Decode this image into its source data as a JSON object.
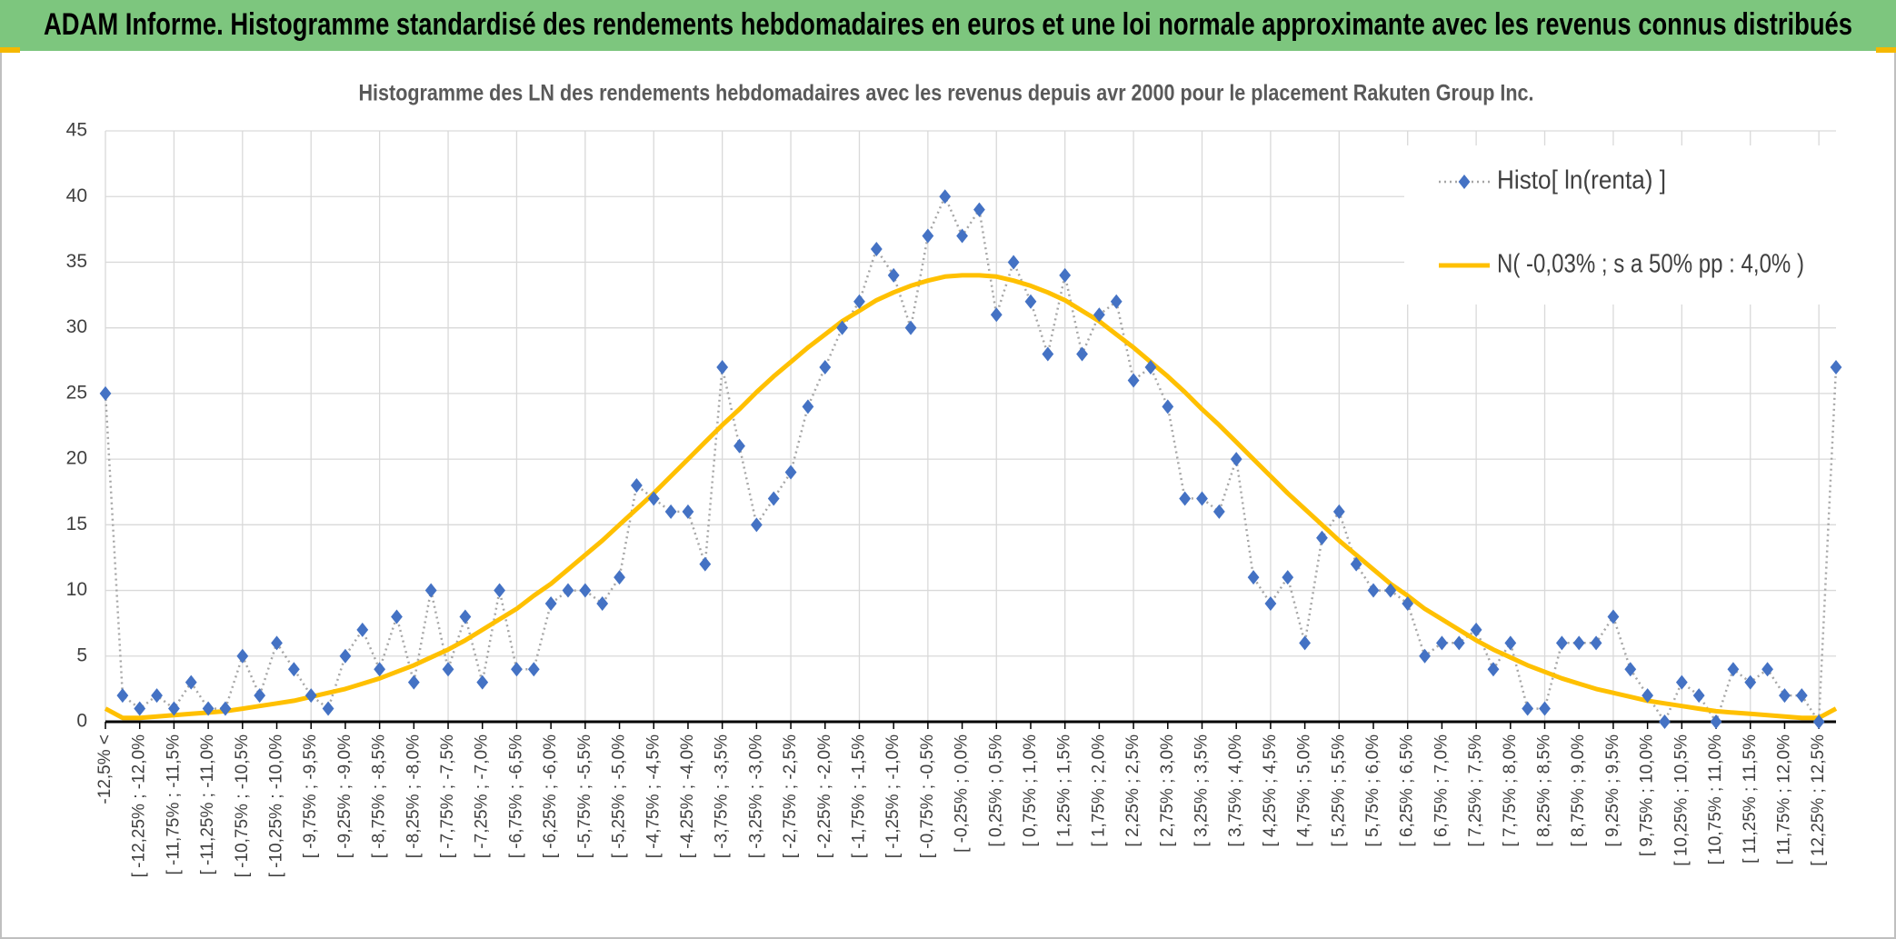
{
  "header": {
    "title": "ADAM Informe. Histogramme standardisé des rendements hebdomadaires en euros et une loi normale approximante avec les revenus connus distribués"
  },
  "chart_data": {
    "type": "line",
    "title": "Histogramme des LN des rendements hebdomadaires avec les revenus depuis avr 2000 pour le placement Rakuten Group Inc.",
    "categories": [
      "-12,5% <",
      null,
      "[ -12,25% ; -12,0%",
      null,
      "[ -11,75% ; -11,5%",
      null,
      "[ -11,25% ; -11,0%",
      null,
      "[ -10,75% ; -10,5%",
      null,
      "[ -10,25% ; -10,0%",
      null,
      "[ -9,75% ; -9,5%",
      null,
      "[ -9,25% ; -9,0%",
      null,
      "[ -8,75% ; -8,5%",
      null,
      "[ -8,25% ; -8,0%",
      null,
      "[ -7,75% ; -7,5%",
      null,
      "[ -7,25% ; -7,0%",
      null,
      "[ -6,75% ; -6,5%",
      null,
      "[ -6,25% ; -6,0%",
      null,
      "[ -5,75% ; -5,5%",
      null,
      "[ -5,25% ; -5,0%",
      null,
      "[ -4,75% ; -4,5%",
      null,
      "[ -4,25% ; -4,0%",
      null,
      "[ -3,75% ; -3,5%",
      null,
      "[ -3,25% ; -3,0%",
      null,
      "[ -2,75% ; -2,5%",
      null,
      "[ -2,25% ; -2,0%",
      null,
      "[ -1,75% ; -1,5%",
      null,
      "[ -1,25% ; -1,0%",
      null,
      "[ -0,75% ; -0,5%",
      null,
      "[ -0,25% ; 0,0%",
      null,
      "[ 0,25% ; 0,5%",
      null,
      "[ 0,75% ; 1,0%",
      null,
      "[ 1,25% ; 1,5%",
      null,
      "[ 1,75% ; 2,0%",
      null,
      "[ 2,25% ; 2,5%",
      null,
      "[ 2,75% ; 3,0%",
      null,
      "[ 3,25% ; 3,5%",
      null,
      "[ 3,75% ; 4,0%",
      null,
      "[ 4,25% ; 4,5%",
      null,
      "[ 4,75% ; 5,0%",
      null,
      "[ 5,25% ; 5,5%",
      null,
      "[ 5,75% ; 6,0%",
      null,
      "[ 6,25% ; 6,5%",
      null,
      "[ 6,75% ; 7,0%",
      null,
      "[ 7,25% ; 7,5%",
      null,
      "[ 7,75% ; 8,0%",
      null,
      "[ 8,25% ; 8,5%",
      null,
      "[ 8,75% ; 9,0%",
      null,
      "[ 9,25% ; 9,5%",
      null,
      "[ 9,75% ; 10,0%",
      null,
      "[ 10,25% ; 10,5%",
      null,
      "[ 10,75% ; 11,0%",
      null,
      "[ 11,25% ; 11,5%",
      null,
      "[ 11,75% ; 12,0%",
      null,
      "[ 12,25% ; 12,5%",
      null
    ],
    "series": [
      {
        "name": "Histo[ ln(renta) ]",
        "color": "#4472c4",
        "line_color": "#a6a6a6",
        "values": [
          25,
          2,
          1,
          2,
          1,
          3,
          1,
          1,
          5,
          2,
          6,
          4,
          2,
          1,
          5,
          7,
          4,
          8,
          3,
          10,
          4,
          8,
          3,
          10,
          4,
          4,
          9,
          10,
          10,
          9,
          11,
          18,
          17,
          16,
          16,
          12,
          27,
          21,
          15,
          17,
          19,
          24,
          27,
          30,
          32,
          36,
          34,
          30,
          37,
          40,
          37,
          39,
          31,
          35,
          32,
          28,
          34,
          28,
          31,
          32,
          26,
          27,
          24,
          17,
          17,
          16,
          20,
          11,
          9,
          11,
          6,
          14,
          16,
          12,
          10,
          10,
          9,
          5,
          6,
          6,
          7,
          4,
          6,
          1,
          1,
          6,
          6,
          6,
          8,
          4,
          2,
          0,
          3,
          2,
          0,
          4,
          3,
          4,
          2,
          2,
          0,
          27
        ]
      },
      {
        "name": "N( -0,03% ; s a 50% pp : 4,0% )",
        "color": "#ffc000",
        "values": [
          1,
          0.3,
          0.3,
          0.4,
          0.5,
          0.6,
          0.7,
          0.8,
          1.0,
          1.2,
          1.4,
          1.6,
          1.9,
          2.2,
          2.5,
          2.9,
          3.3,
          3.8,
          4.3,
          4.9,
          5.5,
          6.2,
          7.0,
          7.8,
          8.6,
          9.6,
          10.5,
          11.6,
          12.7,
          13.8,
          15.0,
          16.2,
          17.4,
          18.7,
          20.0,
          21.3,
          22.6,
          23.8,
          25.1,
          26.3,
          27.4,
          28.5,
          29.5,
          30.5,
          31.3,
          32.1,
          32.7,
          33.2,
          33.6,
          33.9,
          34.0,
          34.0,
          33.9,
          33.6,
          33.2,
          32.7,
          32.1,
          31.3,
          30.5,
          29.5,
          28.5,
          27.4,
          26.3,
          25.1,
          23.8,
          22.6,
          21.3,
          20.0,
          18.7,
          17.4,
          16.2,
          15.0,
          13.8,
          12.7,
          11.6,
          10.5,
          9.6,
          8.6,
          7.8,
          7.0,
          6.2,
          5.5,
          4.9,
          4.3,
          3.8,
          3.3,
          2.9,
          2.5,
          2.2,
          1.9,
          1.6,
          1.4,
          1.2,
          1.0,
          0.8,
          0.7,
          0.6,
          0.5,
          0.4,
          0.3,
          0.3,
          1
        ]
      }
    ],
    "ylim": [
      0,
      45
    ],
    "yticks": [
      0,
      5,
      10,
      15,
      20,
      25,
      30,
      35,
      40,
      45
    ],
    "grid": true,
    "legend": "top-right"
  }
}
